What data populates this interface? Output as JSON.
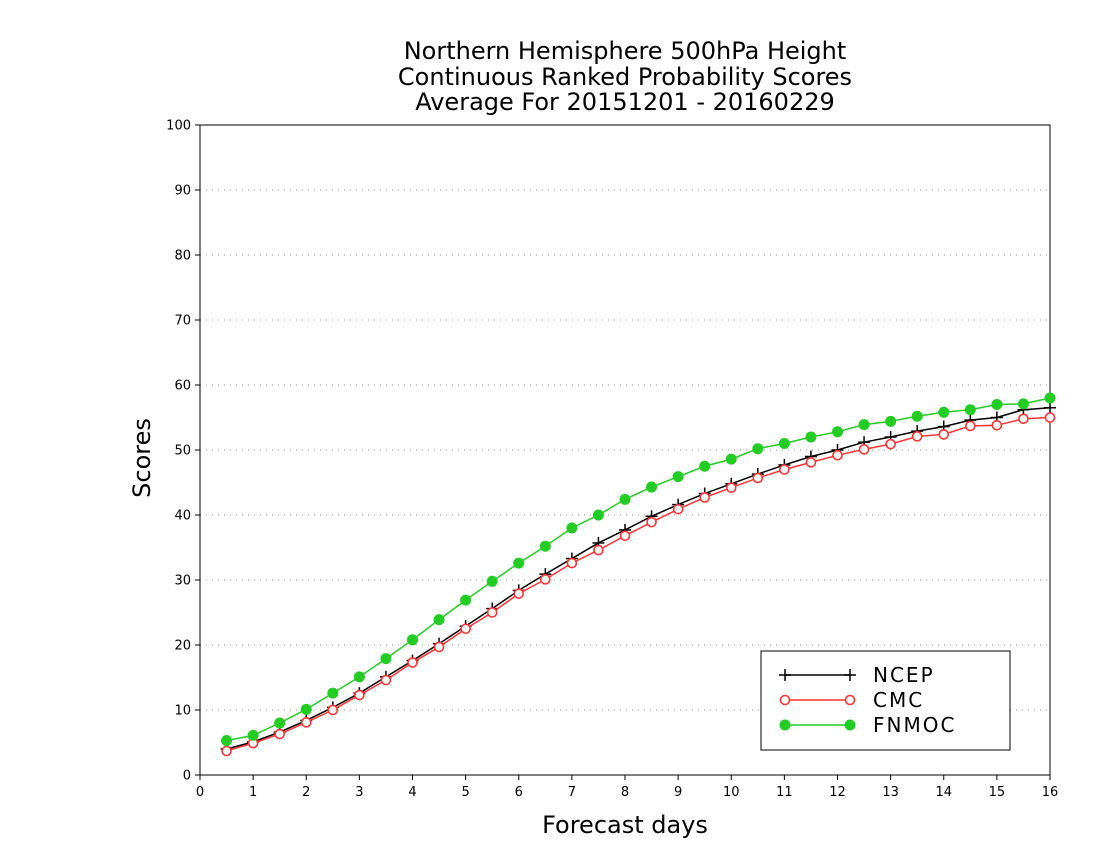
{
  "chart_data": {
    "type": "line",
    "title": [
      "Northern Hemisphere 500hPa Height",
      "Continuous Ranked Probability Scores",
      "Average For 20151201 - 20160229"
    ],
    "xlabel": "Forecast days",
    "ylabel": "Scores",
    "xlim": [
      0,
      16
    ],
    "ylim": [
      0,
      100
    ],
    "x_ticks": [
      "0",
      "1",
      "2",
      "3",
      "4",
      "5",
      "6",
      "7",
      "8",
      "9",
      "10",
      "11",
      "12",
      "13",
      "14",
      "15",
      "16"
    ],
    "y_ticks": [
      "0",
      "10",
      "20",
      "30",
      "40",
      "50",
      "60",
      "70",
      "80",
      "90",
      "100"
    ],
    "grid": "horizontal dotted",
    "legend_position": "bottom-right",
    "x": [
      0.5,
      1,
      1.5,
      2,
      2.5,
      3,
      3.5,
      4,
      4.5,
      5,
      5.5,
      6,
      6.5,
      7,
      7.5,
      8,
      8.5,
      9,
      9.5,
      10,
      10.5,
      11,
      11.5,
      12,
      12.5,
      13,
      13.5,
      14,
      14.5,
      15,
      15.5,
      16
    ],
    "series": [
      {
        "name": "NCEP",
        "color": "#000000",
        "marker": "plus",
        "values": [
          4.0,
          5.1,
          6.6,
          8.4,
          10.4,
          12.6,
          15.1,
          17.6,
          20.2,
          22.9,
          25.6,
          28.4,
          30.9,
          33.3,
          35.7,
          37.7,
          39.8,
          41.6,
          43.3,
          44.8,
          46.3,
          47.7,
          49.0,
          50.0,
          51.2,
          52.0,
          52.9,
          53.6,
          54.6,
          55.0,
          56.2,
          56.5
        ]
      },
      {
        "name": "CMC",
        "color": "#ff3333",
        "marker": "open-circle",
        "values": [
          3.7,
          4.9,
          6.3,
          8.1,
          10.0,
          12.3,
          14.6,
          17.3,
          19.7,
          22.5,
          25.0,
          27.9,
          30.1,
          32.6,
          34.6,
          36.8,
          38.9,
          40.9,
          42.7,
          44.2,
          45.7,
          47.0,
          48.1,
          49.2,
          50.1,
          50.9,
          52.1,
          52.4,
          53.7,
          53.8,
          54.8,
          55.0
        ]
      },
      {
        "name": "FNMOC",
        "color": "#22cc22",
        "marker": "filled-circle",
        "values": [
          5.3,
          6.1,
          8.0,
          10.1,
          12.6,
          15.1,
          17.9,
          20.8,
          23.9,
          26.9,
          29.8,
          32.6,
          35.2,
          38.0,
          40.0,
          42.4,
          44.3,
          45.9,
          47.5,
          48.6,
          50.2,
          51.0,
          52.0,
          52.8,
          53.9,
          54.4,
          55.2,
          55.8,
          56.2,
          57.0,
          57.1,
          58.0
        ]
      }
    ]
  }
}
